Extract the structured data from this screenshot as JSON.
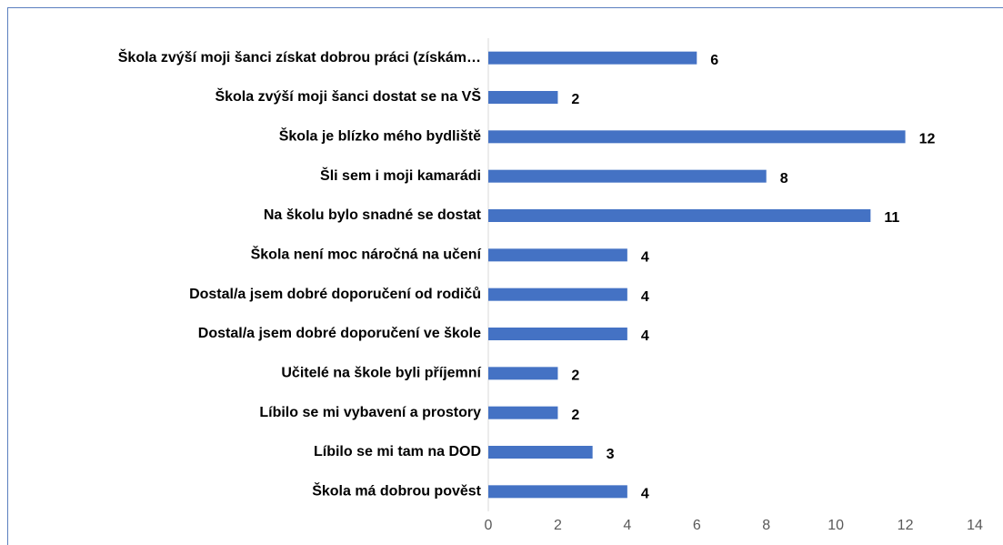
{
  "chart_data": {
    "type": "bar",
    "orientation": "horizontal",
    "categories": [
      "Škola zvýší moji šanci získat dobrou práci (získám…",
      "Škola zvýší moji šanci dostat se na VŠ",
      "Škola je blízko mého bydliště",
      "Šli sem i moji kamarádi",
      "Na školu bylo snadné se dostat",
      "Škola není moc náročná na učení",
      "Dostal/a jsem dobré doporučení od rodičů",
      "Dostal/a jsem dobré doporučení ve škole",
      "Učitelé na škole byli příjemní",
      "Líbilo se mi vybavení a prostory",
      "Líbilo se mi tam na DOD",
      "Škola má dobrou pověst"
    ],
    "values": [
      6,
      2,
      12,
      8,
      11,
      4,
      4,
      4,
      2,
      2,
      3,
      4
    ],
    "color": "#4472c4",
    "xlim": [
      0,
      14
    ],
    "xticks": [
      0,
      2,
      4,
      6,
      8,
      10,
      12,
      14
    ],
    "grid": false
  }
}
